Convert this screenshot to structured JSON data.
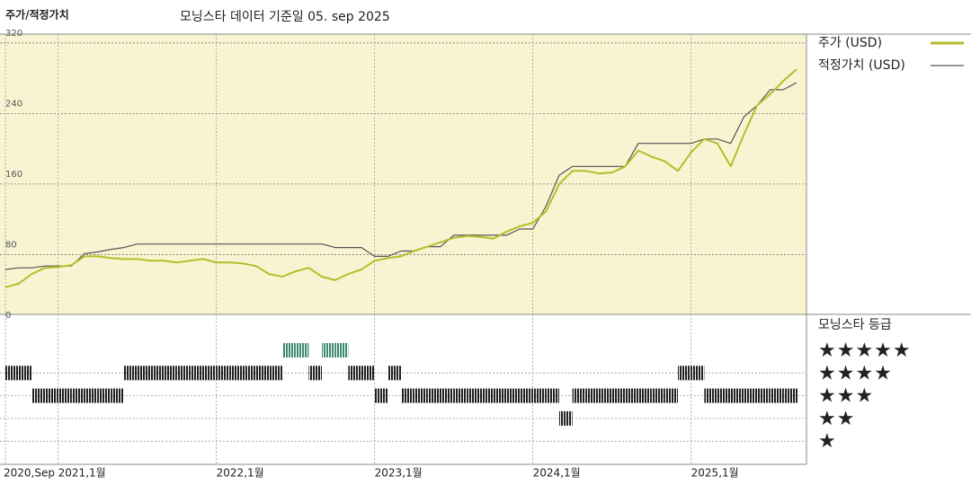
{
  "chart_data": {
    "type": "line",
    "title": "주가/적정가치",
    "subtitle": "모닝스타 데이터 기준일 05. sep 2025",
    "x": [
      "2020-09",
      "2020-10",
      "2020-11",
      "2020-12",
      "2021-01",
      "2021-02",
      "2021-03",
      "2021-04",
      "2021-05",
      "2021-06",
      "2021-07",
      "2021-08",
      "2021-09",
      "2021-10",
      "2021-11",
      "2021-12",
      "2022-01",
      "2022-02",
      "2022-03",
      "2022-04",
      "2022-05",
      "2022-06",
      "2022-07",
      "2022-08",
      "2022-09",
      "2022-10",
      "2022-11",
      "2022-12",
      "2023-01",
      "2023-02",
      "2023-03",
      "2023-04",
      "2023-05",
      "2023-06",
      "2023-07",
      "2023-08",
      "2023-09",
      "2023-10",
      "2023-11",
      "2023-12",
      "2024-01",
      "2024-02",
      "2024-03",
      "2024-04",
      "2024-05",
      "2024-06",
      "2024-07",
      "2024-08",
      "2024-09",
      "2024-10",
      "2024-11",
      "2024-12",
      "2025-01",
      "2025-02",
      "2025-03",
      "2025-04",
      "2025-05",
      "2025-06",
      "2025-07",
      "2025-08",
      "2025-09"
    ],
    "xlim": [
      "2020-09",
      "2025-09"
    ],
    "xticks": [
      {
        "value": "2020-09",
        "label": "2020,Sep"
      },
      {
        "value": "2021-01",
        "label": "2021,1월"
      },
      {
        "value": "2022-01",
        "label": "2022,1월"
      },
      {
        "value": "2023-01",
        "label": "2023,1월"
      },
      {
        "value": "2024-01",
        "label": "2024,1월"
      },
      {
        "value": "2025-01",
        "label": "2025,1월"
      }
    ],
    "ylim": [
      0,
      330
    ],
    "yticks": [
      0,
      80,
      160,
      240,
      320
    ],
    "series": [
      {
        "name": "주가 (USD)",
        "color": "#b5bd2a",
        "values": [
          43,
          47,
          58,
          65,
          66,
          68,
          78,
          78,
          76,
          75,
          75,
          73,
          73,
          71,
          73,
          75,
          71,
          71,
          70,
          67,
          58,
          55,
          61,
          65,
          55,
          51,
          58,
          63,
          73,
          76,
          78,
          84,
          89,
          94,
          99,
          101,
          100,
          98,
          106,
          112,
          116,
          129,
          160,
          175,
          175,
          172,
          173,
          180,
          198,
          191,
          186,
          175,
          196,
          211,
          206,
          180,
          216,
          249,
          262,
          277,
          290
        ]
      },
      {
        "name": "적정가치 (USD)",
        "color": "#555555",
        "values": [
          63,
          65,
          65,
          67,
          67,
          67,
          81,
          83,
          86,
          88,
          92,
          92,
          92,
          92,
          92,
          92,
          92,
          92,
          92,
          92,
          92,
          92,
          92,
          92,
          92,
          88,
          88,
          88,
          78,
          78,
          84,
          84,
          89,
          89,
          102,
          102,
          102,
          102,
          102,
          109,
          109,
          135,
          170,
          180,
          180,
          180,
          180,
          180,
          206,
          206,
          206,
          206,
          206,
          211,
          211,
          206,
          236,
          249,
          267,
          267,
          275
        ]
      }
    ],
    "ratings": {
      "title": "모닝스타 등급",
      "ticks": [
        {
          "value": 5,
          "label": "★★★★★"
        },
        {
          "value": 4,
          "label": "★★★★"
        },
        {
          "value": 3,
          "label": "★★★"
        },
        {
          "value": 2,
          "label": "★★"
        },
        {
          "value": 1,
          "label": "★"
        }
      ],
      "top_color": "#3f8a70",
      "color": "#222222",
      "values": [
        4,
        4,
        3,
        3,
        3,
        3,
        3,
        3,
        3,
        4,
        4,
        4,
        4,
        4,
        4,
        4,
        4,
        4,
        4,
        4,
        4,
        5,
        5,
        4,
        5,
        5,
        4,
        4,
        3,
        4,
        3,
        3,
        3,
        3,
        3,
        3,
        3,
        3,
        3,
        3,
        3,
        3,
        2,
        3,
        3,
        3,
        3,
        3,
        3,
        3,
        3,
        4,
        4,
        3,
        3,
        3,
        3,
        3,
        3,
        3,
        3
      ]
    },
    "grid": true
  }
}
